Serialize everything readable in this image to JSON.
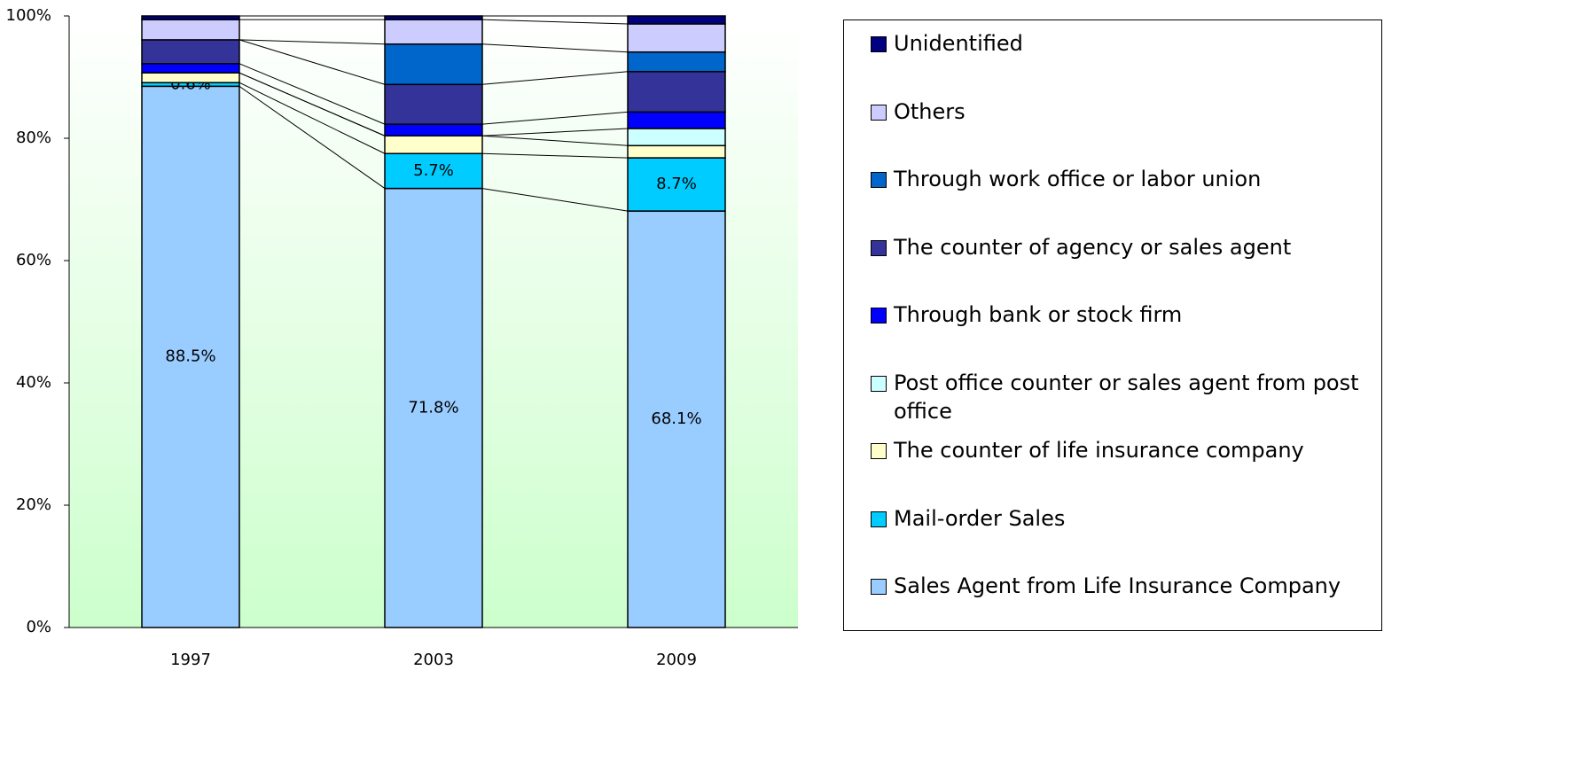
{
  "chart_data": {
    "type": "stacked_bar_100",
    "categories": [
      "1997",
      "2003",
      "2009"
    ],
    "ylim": [
      0,
      100
    ],
    "yticks": [
      {
        "value": 0,
        "label": "0%"
      },
      {
        "value": 20,
        "label": "20%"
      },
      {
        "value": 40,
        "label": "40%"
      },
      {
        "value": 60,
        "label": "60%"
      },
      {
        "value": 80,
        "label": "80%"
      },
      {
        "value": 100,
        "label": "100%"
      }
    ],
    "series": [
      {
        "name": "Sales Agent from Life Insurance Company",
        "color": "#99ccff",
        "values": [
          88.5,
          71.8,
          68.1
        ],
        "value_labels": [
          "88.5%",
          "71.8%",
          "68.1%"
        ]
      },
      {
        "name": "Mail-order Sales",
        "color": "#00ccff",
        "values": [
          0.6,
          5.7,
          8.7
        ],
        "value_labels": [
          "0.6%",
          "5.7%",
          "8.7%"
        ]
      },
      {
        "name": "The counter of life insurance company",
        "color": "#ffffcc",
        "values": [
          1.6,
          2.9,
          2.0
        ]
      },
      {
        "name": "Post office counter or sales agent from post office",
        "color": "#ccffff",
        "values": [
          0,
          0,
          2.8
        ]
      },
      {
        "name": "Through bank or stock firm",
        "color": "#0000ff",
        "values": [
          1.5,
          1.9,
          2.7
        ]
      },
      {
        "name": "The counter of agency or sales agent",
        "color": "#333399",
        "values": [
          3.9,
          6.5,
          6.6
        ]
      },
      {
        "name": "Through work office or labor union",
        "color": "#0066cc",
        "values": [
          0,
          6.6,
          3.2
        ]
      },
      {
        "name": "Others",
        "color": "#ccccff",
        "values": [
          3.3,
          4.0,
          4.6
        ]
      },
      {
        "name": "Unidentified",
        "color": "#000080",
        "values": [
          0.6,
          0.6,
          1.3
        ]
      }
    ]
  }
}
